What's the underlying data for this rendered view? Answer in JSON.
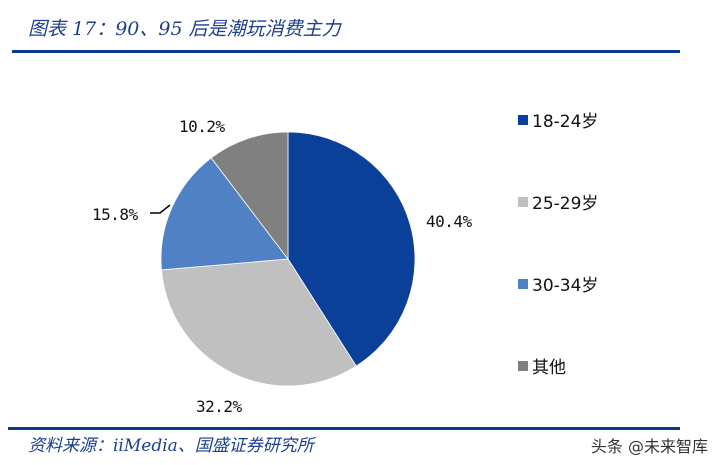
{
  "header": {
    "title": "图表 17：90、95 后是潮玩消费主力"
  },
  "footer": {
    "source": "资料来源：iiMedia、国盛证券研究所",
    "watermark": "头条 @未来智库"
  },
  "chart_data": {
    "type": "pie",
    "title": "图表 17：90、95 后是潮玩消费主力",
    "categories": [
      "18-24岁",
      "25-29岁",
      "30-34岁",
      "其他"
    ],
    "values": [
      40.4,
      32.2,
      15.8,
      10.2
    ],
    "labels": [
      "40.4%",
      "32.2%",
      "15.8%",
      "10.2%"
    ],
    "colors": [
      "#0a3f9a",
      "#c0c0c0",
      "#4f81c4",
      "#808080"
    ],
    "start_angle": "12 o'clock, clockwise",
    "legend_position": "right"
  },
  "legend": {
    "items": [
      {
        "label": "18-24岁",
        "color": "#0a3f9a"
      },
      {
        "label": "25-29岁",
        "color": "#c0c0c0"
      },
      {
        "label": "30-34岁",
        "color": "#4f81c4"
      },
      {
        "label": "其他",
        "color": "#808080"
      }
    ]
  }
}
